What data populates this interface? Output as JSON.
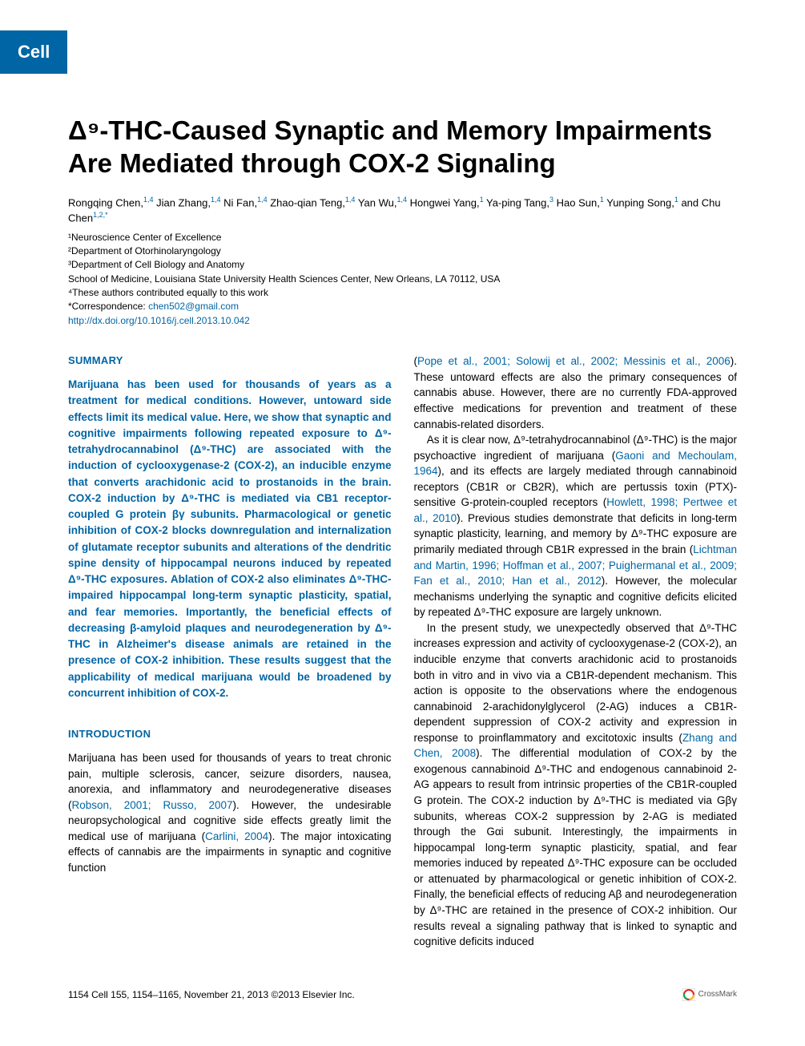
{
  "brand": "Cell",
  "title": "Δ⁹-THC-Caused Synaptic and Memory Impairments Are Mediated through COX-2 Signaling",
  "authors_html": "Rongqing Chen,<sup class='sup'>1,4</sup> Jian Zhang,<sup class='sup'>1,4</sup> Ni Fan,<sup class='sup'>1,4</sup> Zhao-qian Teng,<sup class='sup'>1,4</sup> Yan Wu,<sup class='sup'>1,4</sup> Hongwei Yang,<sup class='sup'>1</sup> Ya-ping Tang,<sup class='sup'>3</sup> Hao Sun,<sup class='sup'>1</sup> Yunping Song,<sup class='sup'>1</sup> and Chu Chen<sup class='sup'>1,2,*</sup>",
  "affiliations": [
    "¹Neuroscience Center of Excellence",
    "²Department of Otorhinolaryngology",
    "³Department of Cell Biology and Anatomy",
    "School of Medicine, Louisiana State University Health Sciences Center, New Orleans, LA 70112, USA",
    "⁴These authors contributed equally to this work"
  ],
  "correspondence_label": "*Correspondence: ",
  "correspondence_email": "chen502@gmail.com",
  "doi": "http://dx.doi.org/10.1016/j.cell.2013.10.042",
  "summary_head": "SUMMARY",
  "summary_body": "Marijuana has been used for thousands of years as a treatment for medical conditions. However, untoward side effects limit its medical value. Here, we show that synaptic and cognitive impairments following repeated exposure to Δ⁹-tetrahydrocannabinol (Δ⁹-THC) are associated with the induction of cyclooxygenase-2 (COX-2), an inducible enzyme that converts arachidonic acid to prostanoids in the brain. COX-2 induction by Δ⁹-THC is mediated via CB1 receptor-coupled G protein βγ subunits. Pharmacological or genetic inhibition of COX-2 blocks downregulation and internalization of glutamate receptor subunits and alterations of the dendritic spine density of hippocampal neurons induced by repeated Δ⁹-THC exposures. Ablation of COX-2 also eliminates Δ⁹-THC-impaired hippocampal long-term synaptic plasticity, spatial, and fear memories. Importantly, the beneficial effects of decreasing β-amyloid plaques and neurodegeneration by Δ⁹-THC in Alzheimer's disease animals are retained in the presence of COX-2 inhibition. These results suggest that the applicability of medical marijuana would be broadened by concurrent inhibition of COX-2.",
  "intro_head": "INTRODUCTION",
  "intro_left": "Marijuana has been used for thousands of years to treat chronic pain, multiple sclerosis, cancer, seizure disorders, nausea, anorexia, and inflammatory and neurodegenerative diseases (<span class='cite'>Robson, 2001; Russo, 2007</span>). However, the undesirable neuropsychological and cognitive side effects greatly limit the medical use of marijuana (<span class='cite'>Carlini, 2004</span>). The major intoxicating effects of cannabis are the impairments in synaptic and cognitive function",
  "right_p1": "(<span class='cite'>Pope et al., 2001; Solowij et al., 2002; Messinis et al., 2006</span>). These untoward effects are also the primary consequences of cannabis abuse. However, there are no currently FDA-approved effective medications for prevention and treatment of these cannabis-related disorders.",
  "right_p2": "As it is clear now, Δ⁹-tetrahydrocannabinol (Δ⁹-THC) is the major psychoactive ingredient of marijuana (<span class='cite'>Gaoni and Mechoulam, 1964</span>), and its effects are largely mediated through cannabinoid receptors (CB1R or CB2R), which are pertussis toxin (PTX)-sensitive G-protein-coupled receptors (<span class='cite'>Howlett, 1998; Pertwee et al., 2010</span>). Previous studies demonstrate that deficits in long-term synaptic plasticity, learning, and memory by Δ⁹-THC exposure are primarily mediated through CB1R expressed in the brain (<span class='cite'>Lichtman and Martin, 1996; Hoffman et al., 2007; Puighermanal et al., 2009; Fan et al., 2010; Han et al., 2012</span>). However, the molecular mechanisms underlying the synaptic and cognitive deficits elicited by repeated Δ⁹-THC exposure are largely unknown.",
  "right_p3": "In the present study, we unexpectedly observed that Δ⁹-THC increases expression and activity of cyclooxygenase-2 (COX-2), an inducible enzyme that converts arachidonic acid to prostanoids both in vitro and in vivo via a CB1R-dependent mechanism. This action is opposite to the observations where the endogenous cannabinoid 2-arachidonylglycerol (2-AG) induces a CB1R-dependent suppression of COX-2 activity and expression in response to proinflammatory and excitotoxic insults (<span class='cite'>Zhang and Chen, 2008</span>). The differential modulation of COX-2 by the exogenous cannabinoid Δ⁹-THC and endogenous cannabinoid 2-AG appears to result from intrinsic properties of the CB1R-coupled G protein. The COX-2 induction by Δ⁹-THC is mediated via Gβγ subunits, whereas COX-2 suppression by 2-AG is mediated through the Gαi subunit. Interestingly, the impairments in hippocampal long-term synaptic plasticity, spatial, and fear memories induced by repeated Δ⁹-THC exposure can be occluded or attenuated by pharmacological or genetic inhibition of COX-2. Finally, the beneficial effects of reducing Aβ and neurodegeneration by Δ⁹-THC are retained in the presence of COX-2 inhibition. Our results reveal a signaling pathway that is linked to synaptic and cognitive deficits induced",
  "footer_left": "1154   Cell 155, 1154–1165, November 21, 2013 ©2013 Elsevier Inc.",
  "crossmark": "CrossMark",
  "colors": {
    "brand_bg": "#0065a4",
    "brand_fg": "#ffffff",
    "link": "#0065a4",
    "text": "#000000",
    "bg": "#ffffff"
  }
}
